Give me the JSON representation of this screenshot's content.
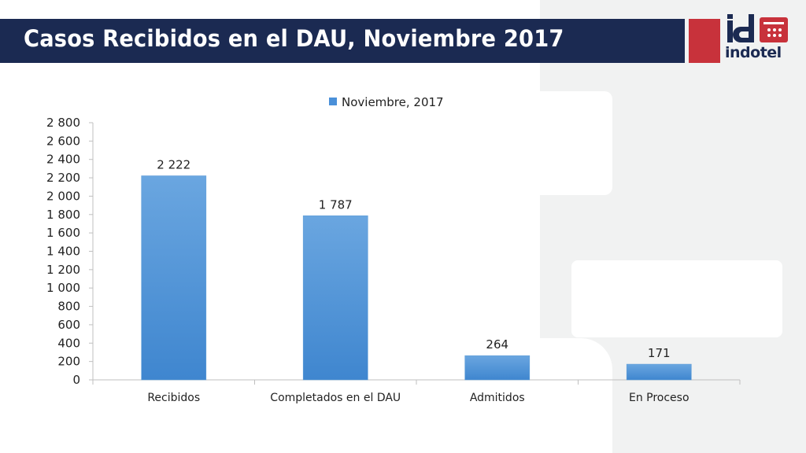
{
  "header": {
    "title": "Casos Recibidos en el DAU, Noviembre 2017",
    "logo_mark": "id",
    "logo_text": "indotel",
    "accent_color": "#c8323b",
    "bar_color": "#1b2a52"
  },
  "chart_data": {
    "type": "bar",
    "categories": [
      "Recibidos",
      "Completados en el DAU",
      "Admitidos",
      "En Proceso"
    ],
    "series": [
      {
        "name": "Noviembre, 2017",
        "values": [
          2222,
          1787,
          264,
          171
        ],
        "color": "#4a90d9"
      }
    ],
    "data_labels": [
      "2 222",
      "1 787",
      "264",
      "171"
    ],
    "ylim": [
      0,
      2800
    ],
    "y_ticks": [
      0,
      200,
      400,
      600,
      800,
      1000,
      1200,
      1400,
      1600,
      1800,
      2000,
      2200,
      2400,
      2600,
      2800
    ],
    "y_tick_labels": [
      "0",
      "200",
      "400",
      "600",
      "800",
      "1 000",
      "1 200",
      "1 400",
      "1 600",
      "1 800",
      "2 000",
      "2 200",
      "2 400",
      "2 600",
      "2 800"
    ],
    "legend_position": "top",
    "grid": false
  }
}
